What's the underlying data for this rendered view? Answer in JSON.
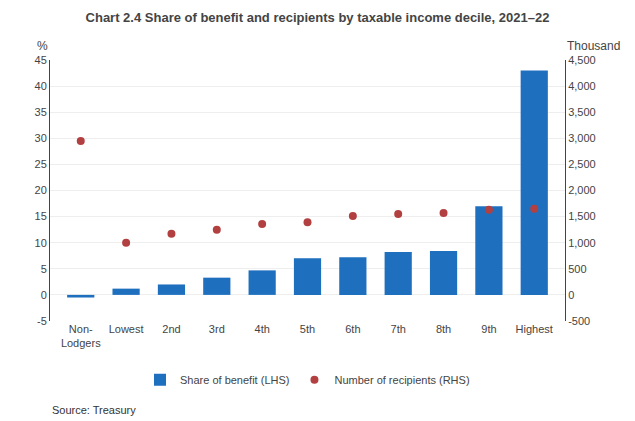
{
  "chart_data": {
    "type": "bar",
    "title": "Chart 2.4 Share of benefit and recipients by taxable income decile, 2021–22",
    "categories": [
      "Non-\nLodgers",
      "Lowest",
      "2nd",
      "3rd",
      "4th",
      "5th",
      "6th",
      "7th",
      "8th",
      "9th",
      "Highest"
    ],
    "series": [
      {
        "name": "Share of benefit (LHS)",
        "type": "bar",
        "color": "#1F6FBF",
        "values": [
          -0.5,
          1.2,
          2.0,
          3.3,
          4.7,
          7.0,
          7.2,
          8.2,
          8.4,
          17.0,
          43.0
        ]
      },
      {
        "name": "Number of recipients (RHS)",
        "type": "scatter",
        "marker": "circle",
        "color": "#B34040",
        "axis": "y2",
        "values": [
          2950,
          1000,
          1170,
          1250,
          1360,
          1390,
          1510,
          1550,
          1570,
          1630,
          1650
        ]
      }
    ],
    "ylabel": "%",
    "y2label": "Thousand",
    "ylim": [
      -5,
      45
    ],
    "yticks": [
      -5,
      0,
      5,
      10,
      15,
      20,
      25,
      30,
      35,
      40,
      45
    ],
    "y2lim": [
      -500,
      4500
    ],
    "y2ticks": [
      -500,
      0,
      500,
      {
        "value": 1000,
        "label": "1,000"
      },
      {
        "value": 1500,
        "label": "1,500"
      },
      {
        "value": 2000,
        "label": "2,000"
      },
      {
        "value": 2500,
        "label": "2,500"
      },
      {
        "value": 3000,
        "label": "3,000"
      },
      {
        "value": 3500,
        "label": "3,500"
      },
      {
        "value": 4000,
        "label": "4,000"
      },
      {
        "value": 4500,
        "label": "4,500"
      }
    ],
    "annotations": [
      "Source: Treasury"
    ],
    "grid": true,
    "legend": "bottom"
  }
}
